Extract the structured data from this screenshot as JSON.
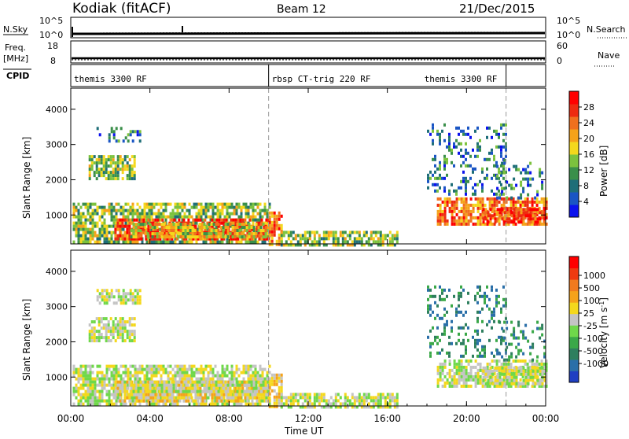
{
  "header": {
    "station": "Kodiak (fitACF)",
    "beam": "Beam 12",
    "date": "21/Dec/2015"
  },
  "aux_panels": {
    "nsky_label": "N.Sky",
    "nsky_ticks": [
      "10^5",
      "10^0"
    ],
    "nsearch_label": "N.Search",
    "nsearch_ticks": [
      "10^5",
      "10^0"
    ],
    "freq_label_1": "Freq.",
    "freq_label_2": "[MHz]",
    "freq_ticks": [
      "18",
      "8"
    ],
    "nave_label": "Nave",
    "nave_ticks": [
      "60",
      "0"
    ],
    "cpid_label": "CPID",
    "cpid_segments": [
      {
        "label": "themis 3300 RF",
        "start_hour": 0,
        "end_hour": 10
      },
      {
        "label": "rbsp CT-trig 220 RF",
        "start_hour": 10,
        "end_hour": 22
      },
      {
        "label": "themis 3300 RF",
        "start_hour": 22,
        "end_hour": 24
      }
    ]
  },
  "chart_data": [
    {
      "type": "heatmap",
      "panel": "power",
      "ylabel": "Slant Range [km]",
      "yticks": [
        1000,
        2000,
        3000,
        4000
      ],
      "ylim": [
        180,
        4600
      ],
      "xlim": [
        0,
        24
      ],
      "colorbar": {
        "label": "Power [dB]",
        "ticks": [
          "4",
          "8",
          "12",
          "16",
          "20",
          "24",
          "28"
        ],
        "colors": [
          "#0b12ee",
          "#1a55c4",
          "#1e6e78",
          "#3a8f4a",
          "#7cc23e",
          "#f4d81c",
          "#f5a21a",
          "#f0701e",
          "#ee2b10",
          "#ff0000"
        ]
      },
      "echo_regions": [
        {
          "t0": 0.1,
          "t1": 10.0,
          "r0": 250,
          "r1": 1350,
          "level": 1
        },
        {
          "t0": 2.2,
          "t1": 10.0,
          "r0": 300,
          "r1": 900,
          "level": 3
        },
        {
          "t0": 3.0,
          "t1": 10.0,
          "r0": 380,
          "r1": 780,
          "level": 4
        },
        {
          "t0": 10.0,
          "t1": 10.7,
          "r0": 200,
          "r1": 1100,
          "level": 2
        },
        {
          "t0": 10.6,
          "t1": 16.5,
          "r0": 180,
          "r1": 550,
          "level": 1
        },
        {
          "t0": 0.9,
          "t1": 3.2,
          "r0": 2000,
          "r1": 2700,
          "level": 1
        },
        {
          "t0": 1.3,
          "t1": 3.5,
          "r0": 3100,
          "r1": 3500,
          "level": 0
        },
        {
          "t0": 18.5,
          "t1": 24.0,
          "r0": 700,
          "r1": 1500,
          "level": 2
        },
        {
          "t0": 20.8,
          "t1": 24.0,
          "r0": 800,
          "r1": 1200,
          "level": 3
        },
        {
          "t0": 18.0,
          "t1": 22.0,
          "r0": 1600,
          "r1": 3600,
          "level": 0
        },
        {
          "t0": 21.5,
          "t1": 24.0,
          "r0": 1500,
          "r1": 2600,
          "level": 0
        }
      ]
    },
    {
      "type": "heatmap",
      "panel": "velocity",
      "ylabel": "Slant Range [km]",
      "yticks": [
        1000,
        2000,
        3000,
        4000
      ],
      "ylim": [
        180,
        4600
      ],
      "xlim": [
        0,
        24
      ],
      "colorbar": {
        "label": "Velocity [m s^-1]",
        "ticks": [
          "1000",
          "500",
          "100",
          "25",
          "-25",
          "-100",
          "-500",
          "-1000"
        ],
        "colors": [
          "#1f3fc2",
          "#2a6fa8",
          "#2e7f5e",
          "#3aa848",
          "#6fd84a",
          "#c4c4c4",
          "#f4d81c",
          "#f5a21a",
          "#f07a1e",
          "#ee3a10",
          "#ff0000"
        ]
      },
      "echo_regions": [
        {
          "t0": 0.1,
          "t1": 10.0,
          "r0": 250,
          "r1": 1350,
          "level": 1
        },
        {
          "t0": 2.2,
          "t1": 10.0,
          "r0": 300,
          "r1": 900,
          "level": 2
        },
        {
          "t0": 3.0,
          "t1": 10.0,
          "r0": 550,
          "r1": 900,
          "level": 3
        },
        {
          "t0": 10.0,
          "t1": 10.7,
          "r0": 200,
          "r1": 1100,
          "level": 2
        },
        {
          "t0": 10.6,
          "t1": 16.5,
          "r0": 180,
          "r1": 550,
          "level": 1
        },
        {
          "t0": 0.9,
          "t1": 3.2,
          "r0": 2000,
          "r1": 2700,
          "level": 3
        },
        {
          "t0": 1.3,
          "t1": 3.5,
          "r0": 3100,
          "r1": 3500,
          "level": 3
        },
        {
          "t0": 18.5,
          "t1": 24.0,
          "r0": 700,
          "r1": 1500,
          "level": 3
        },
        {
          "t0": 20.8,
          "t1": 24.0,
          "r0": 800,
          "r1": 1300,
          "level": 3
        },
        {
          "t0": 18.0,
          "t1": 22.0,
          "r0": 1600,
          "r1": 3600,
          "level": 0
        },
        {
          "t0": 21.5,
          "t1": 24.0,
          "r0": 1500,
          "r1": 2600,
          "level": 0
        }
      ]
    }
  ],
  "x_axis": {
    "ticks": [
      "00:00",
      "04:00",
      "08:00",
      "12:00",
      "16:00",
      "20:00",
      "00:00"
    ],
    "label": "Time UT",
    "mode_change_hours": [
      10,
      22
    ]
  }
}
